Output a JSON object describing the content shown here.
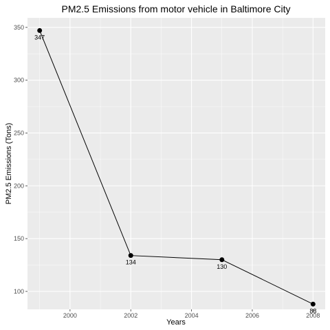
{
  "chart_data": {
    "type": "line",
    "title": "PM2.5 Emissions from motor vehicle in Baltimore City",
    "xlabel": "Years",
    "ylabel": "PM2.5 Emissions (Tons)",
    "x": [
      1999,
      2002,
      2005,
      2008
    ],
    "values": [
      347,
      134,
      130,
      88
    ],
    "point_labels": [
      "347",
      "134",
      "130",
      "88"
    ],
    "xlim": [
      1998.6,
      2008.4
    ],
    "ylim": [
      83,
      359
    ],
    "x_ticks": [
      2000,
      2002,
      2004,
      2006,
      2008
    ],
    "x_tick_labels": [
      "2000",
      "2002",
      "2004",
      "2006",
      "2008"
    ],
    "y_ticks": [
      100,
      150,
      200,
      250,
      300,
      350
    ],
    "y_tick_labels": [
      "100",
      "150",
      "200",
      "250",
      "300",
      "350"
    ],
    "grid": true,
    "legend": "none",
    "colors": {
      "panel": "#ebebeb",
      "grid_major": "#ffffff",
      "line": "#000000",
      "point": "#000000",
      "tick_text": "#4d4d4d"
    }
  }
}
